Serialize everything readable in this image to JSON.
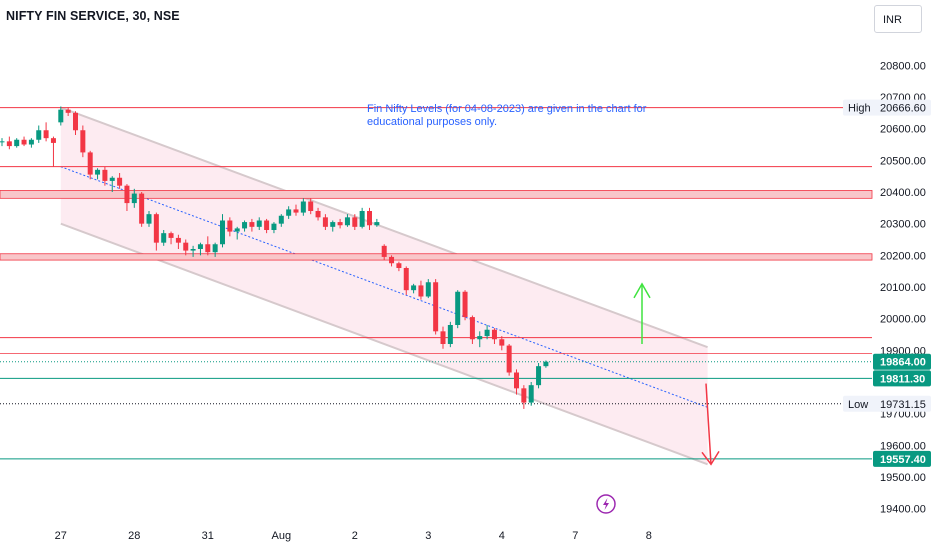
{
  "header": {
    "symbol_title": "NIFTY FIN SERVICE, 30, NSE",
    "currency": "INR"
  },
  "annotation": {
    "line1": "Fin Nifty Levels (for 04-08-2023) are given in the chart for",
    "line2": "educational purposes only."
  },
  "icons": {
    "event_icon": "lightning-bolt-icon"
  },
  "colors": {
    "up": "#089981",
    "down": "#f23645",
    "resistance": "#f23645",
    "support": "#089981",
    "channel": "#f8bbd0",
    "midline": "#2962ff",
    "green_tag": "#089981",
    "price_tag": "#089981",
    "arrow_up": "#3fe33f",
    "arrow_down": "#f23645",
    "event": "#9c27b0"
  },
  "chart_data": {
    "type": "candlestick",
    "ylim": [
      19380,
      20880
    ],
    "y_ticks": [
      19400,
      19500,
      19600,
      19700,
      19800,
      19900,
      20000,
      20100,
      20200,
      20300,
      20400,
      20500,
      20600,
      20700,
      20800
    ],
    "y_tick_labels": [
      "19400.00",
      "19500.00",
      "19600.00",
      "19700.00",
      "19800.00",
      "19900.00",
      "20000.00",
      "20100.00",
      "20200.00",
      "20300.00",
      "20400.00",
      "20500.00",
      "20600.00",
      "20700.00",
      "20800.00"
    ],
    "x_labels": [
      {
        "label": "27",
        "bar": 8
      },
      {
        "label": "28",
        "bar": 18
      },
      {
        "label": "31",
        "bar": 28
      },
      {
        "label": "Aug",
        "bar": 38
      },
      {
        "label": "2",
        "bar": 48
      },
      {
        "label": "3",
        "bar": 58
      },
      {
        "label": "4",
        "bar": 68
      },
      {
        "label": "7",
        "bar": 78
      },
      {
        "label": "8",
        "bar": 88
      }
    ],
    "candles": [
      [
        20558,
        20570,
        20545,
        20560
      ],
      [
        20560,
        20575,
        20535,
        20545
      ],
      [
        20545,
        20570,
        20540,
        20565
      ],
      [
        20565,
        20575,
        20545,
        20550
      ],
      [
        20550,
        20570,
        20540,
        20565
      ],
      [
        20565,
        20610,
        20555,
        20595
      ],
      [
        20595,
        20620,
        20560,
        20570
      ],
      [
        20570,
        20575,
        20480,
        20555
      ],
      [
        20620,
        20670,
        20610,
        20660
      ],
      [
        20660,
        20668,
        20640,
        20650
      ],
      [
        20650,
        20655,
        20580,
        20595
      ],
      [
        20595,
        20610,
        20510,
        20525
      ],
      [
        20525,
        20530,
        20440,
        20455
      ],
      [
        20455,
        20475,
        20440,
        20470
      ],
      [
        20470,
        20480,
        20420,
        20435
      ],
      [
        20435,
        20450,
        20400,
        20445
      ],
      [
        20445,
        20460,
        20410,
        20420
      ],
      [
        20420,
        20425,
        20340,
        20365
      ],
      [
        20365,
        20410,
        20350,
        20395
      ],
      [
        20395,
        20400,
        20290,
        20300
      ],
      [
        20300,
        20340,
        20290,
        20330
      ],
      [
        20330,
        20335,
        20215,
        20240
      ],
      [
        20240,
        20280,
        20230,
        20270
      ],
      [
        20270,
        20275,
        20235,
        20255
      ],
      [
        20255,
        20265,
        20220,
        20240
      ],
      [
        20240,
        20250,
        20200,
        20215
      ],
      [
        20215,
        20230,
        20195,
        20220
      ],
      [
        20220,
        20240,
        20200,
        20235
      ],
      [
        20235,
        20260,
        20200,
        20210
      ],
      [
        20210,
        20240,
        20195,
        20235
      ],
      [
        20235,
        20330,
        20225,
        20310
      ],
      [
        20310,
        20320,
        20260,
        20275
      ],
      [
        20275,
        20290,
        20250,
        20285
      ],
      [
        20285,
        20310,
        20275,
        20305
      ],
      [
        20305,
        20315,
        20275,
        20290
      ],
      [
        20290,
        20320,
        20280,
        20310
      ],
      [
        20310,
        20315,
        20270,
        20280
      ],
      [
        20280,
        20305,
        20270,
        20300
      ],
      [
        20300,
        20330,
        20290,
        20325
      ],
      [
        20325,
        20355,
        20315,
        20345
      ],
      [
        20345,
        20360,
        20325,
        20335
      ],
      [
        20335,
        20380,
        20325,
        20370
      ],
      [
        20370,
        20380,
        20330,
        20340
      ],
      [
        20340,
        20350,
        20310,
        20320
      ],
      [
        20320,
        20330,
        20280,
        20290
      ],
      [
        20290,
        20310,
        20275,
        20305
      ],
      [
        20305,
        20315,
        20285,
        20295
      ],
      [
        20295,
        20330,
        20290,
        20320
      ],
      [
        20320,
        20330,
        20280,
        20290
      ],
      [
        20290,
        20350,
        20285,
        20340
      ],
      [
        20340,
        20350,
        20280,
        20295
      ],
      [
        20295,
        20315,
        20290,
        20305
      ],
      [
        20230,
        20235,
        20185,
        20195
      ],
      [
        20195,
        20200,
        20165,
        20175
      ],
      [
        20175,
        20180,
        20150,
        20160
      ],
      [
        20160,
        20165,
        20075,
        20090
      ],
      [
        20090,
        20110,
        20080,
        20105
      ],
      [
        20105,
        20120,
        20060,
        20070
      ],
      [
        20070,
        20125,
        20065,
        20115
      ],
      [
        20115,
        20125,
        19950,
        19960
      ],
      [
        19960,
        19975,
        19905,
        19920
      ],
      [
        19920,
        19990,
        19910,
        19980
      ],
      [
        19980,
        20090,
        19970,
        20085
      ],
      [
        20085,
        20090,
        19995,
        20005
      ],
      [
        20005,
        20010,
        19920,
        19935
      ],
      [
        19935,
        19960,
        19910,
        19945
      ],
      [
        19945,
        19980,
        19935,
        19965
      ],
      [
        19965,
        19970,
        19920,
        19935
      ],
      [
        19935,
        19945,
        19900,
        19915
      ],
      [
        19915,
        19920,
        19820,
        19830
      ],
      [
        19830,
        19840,
        19760,
        19780
      ],
      [
        19780,
        19790,
        19715,
        19735
      ],
      [
        19735,
        19800,
        19725,
        19790
      ],
      [
        19790,
        19860,
        19780,
        19850
      ],
      [
        19850,
        19868,
        19845,
        19864
      ]
    ],
    "levels": [
      {
        "name": "resistance-20666",
        "value": 20666.6,
        "color": "#f23645",
        "style": "solid"
      },
      {
        "name": "resistance-20480",
        "value": 20480,
        "color": "#f23645",
        "style": "solid"
      },
      {
        "name": "resistance-zone-20400",
        "value_low": 20380,
        "value_high": 20405,
        "color": "#f23645",
        "style": "zone"
      },
      {
        "name": "resistance-zone-20200",
        "value_low": 20185,
        "value_high": 20205,
        "color": "#f23645",
        "style": "zone"
      },
      {
        "name": "resistance-19940",
        "value": 19940,
        "color": "#f23645",
        "style": "solid"
      },
      {
        "name": "resistance-19890",
        "value": 19890,
        "color": "#f23645",
        "style": "thin"
      },
      {
        "name": "last-price",
        "value": 19864,
        "color": "#089981",
        "style": "dotted"
      },
      {
        "name": "support-19811",
        "value": 19811.3,
        "color": "#089981",
        "style": "solid"
      },
      {
        "name": "low-19731",
        "value": 19731.15,
        "color": "#131722",
        "style": "dotted"
      },
      {
        "name": "support-19557",
        "value": 19557.4,
        "color": "#089981",
        "style": "solid"
      }
    ],
    "price_tags": [
      {
        "label": "20666.60",
        "value": 20666.6,
        "kind": "plain",
        "prefix": "High"
      },
      {
        "label": "19864.00",
        "value": 19864,
        "kind": "green"
      },
      {
        "label": "19811.30",
        "value": 19811.3,
        "kind": "green"
      },
      {
        "label": "19731.15",
        "value": 19731.15,
        "kind": "plain",
        "prefix": "Low"
      },
      {
        "label": "19557.40",
        "value": 19557.4,
        "kind": "green"
      }
    ],
    "channel": {
      "upper_start": {
        "bar": 8,
        "value": 20666.6
      },
      "upper_end": {
        "bar": 96,
        "value": 19910
      },
      "lower_start": {
        "bar": 8,
        "value": 20300
      },
      "lower_end": {
        "bar": 96,
        "value": 19540
      }
    },
    "midline": {
      "start": {
        "bar": 8,
        "value": 20480
      },
      "end": {
        "bar": 96,
        "value": 19720
      }
    }
  }
}
